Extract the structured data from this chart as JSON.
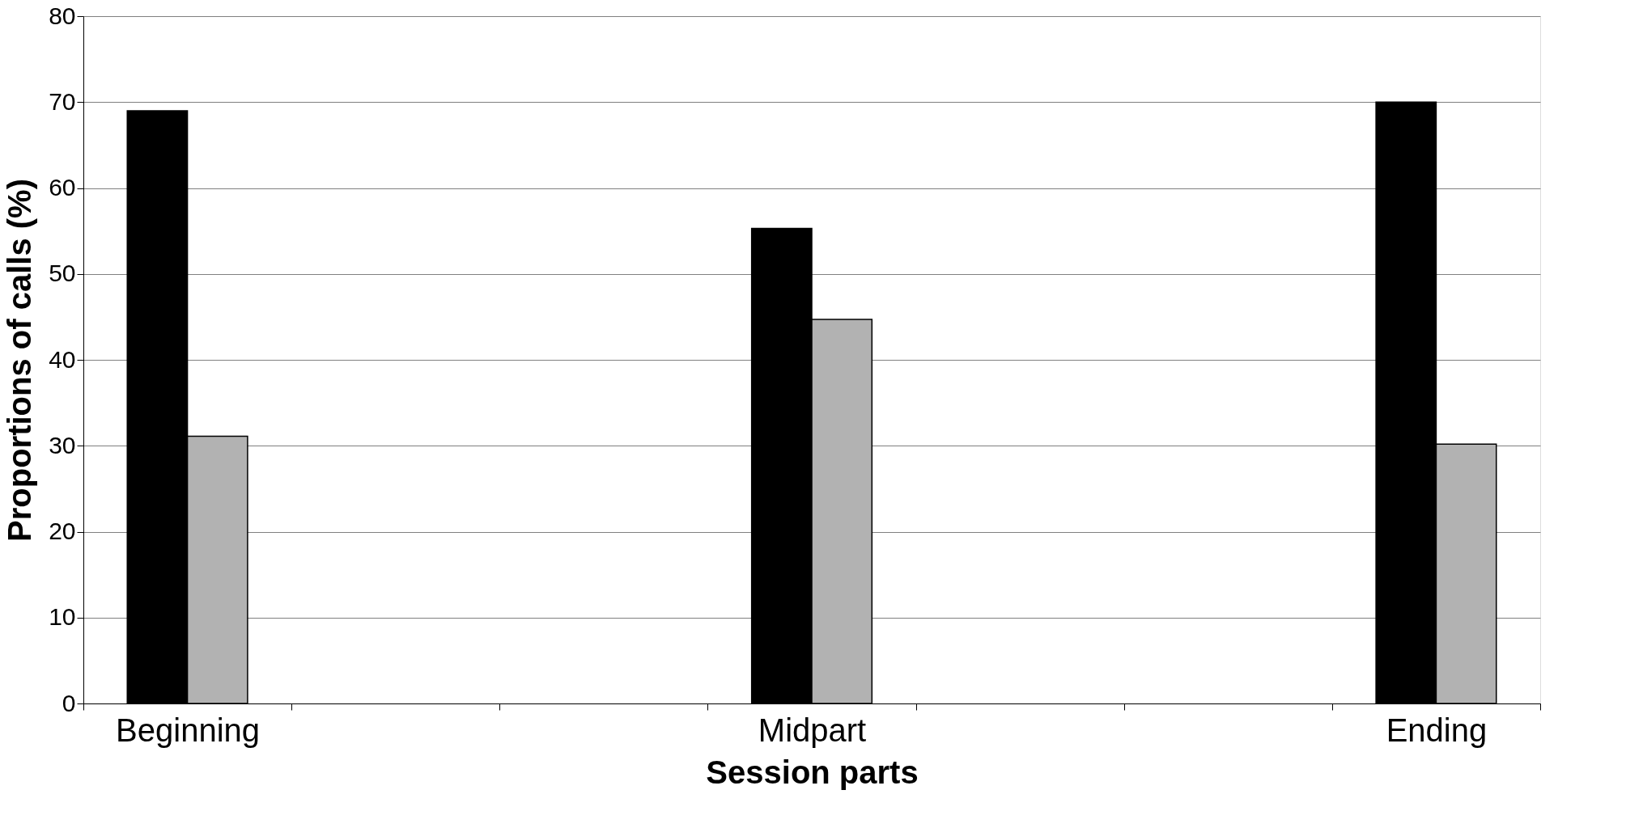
{
  "chart_data": {
    "type": "bar",
    "xlabel": "Session parts",
    "ylabel": "Proportions of calls (%)",
    "categories": [
      "Beginning",
      null,
      null,
      "Midpart",
      null,
      null,
      "Ending"
    ],
    "series": [
      {
        "color": "#000000",
        "values": [
          69,
          null,
          null,
          55.3,
          null,
          null,
          70
        ]
      },
      {
        "color": "#b2b2b2",
        "values": [
          31.1,
          null,
          null,
          44.7,
          null,
          null,
          30.2
        ]
      }
    ],
    "ylim": [
      0,
      80
    ],
    "yticks": [
      0,
      10,
      20,
      30,
      40,
      50,
      60,
      70,
      80
    ],
    "grid": "y",
    "legend": false
  }
}
